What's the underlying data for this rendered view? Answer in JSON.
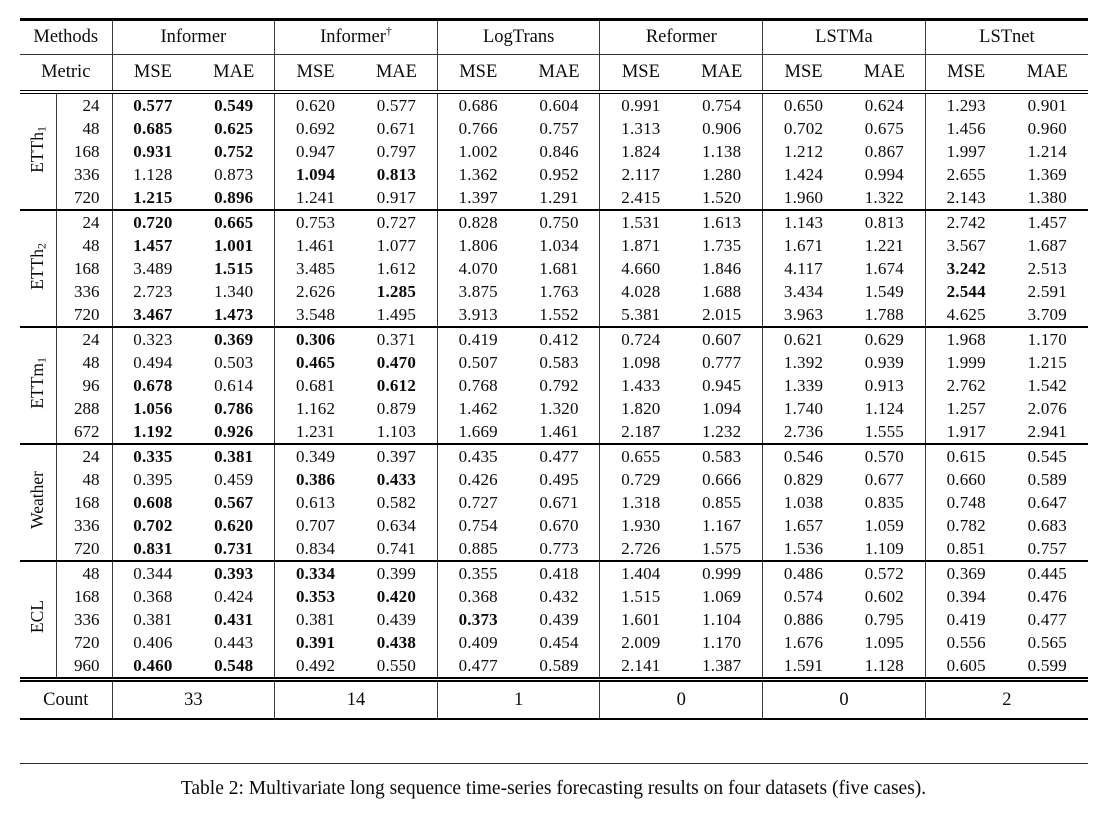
{
  "caption": "Table 2: Multivariate long sequence time-series forecasting results on four datasets (five cases).",
  "table": {
    "methods_label": "Methods",
    "metric_label": "Metric",
    "count_label": "Count",
    "methods": [
      {
        "name": "Informer",
        "sup": ""
      },
      {
        "name": "Informer",
        "sup": "†"
      },
      {
        "name": "LogTrans",
        "sup": ""
      },
      {
        "name": "Reformer",
        "sup": ""
      },
      {
        "name": "LSTMa",
        "sup": ""
      },
      {
        "name": "LSTnet",
        "sup": ""
      }
    ],
    "metrics": [
      "MSE",
      "MAE"
    ],
    "counts": [
      "33",
      "14",
      "1",
      "0",
      "0",
      "2"
    ],
    "groups": [
      {
        "label": "ETTh",
        "sub": "1",
        "rows": [
          {
            "h": "24",
            "v": [
              "0.577",
              "0.549",
              "0.620",
              "0.577",
              "0.686",
              "0.604",
              "0.991",
              "0.754",
              "0.650",
              "0.624",
              "1.293",
              "0.901"
            ],
            "b": [
              1,
              1,
              0,
              0,
              0,
              0,
              0,
              0,
              0,
              0,
              0,
              0
            ]
          },
          {
            "h": "48",
            "v": [
              "0.685",
              "0.625",
              "0.692",
              "0.671",
              "0.766",
              "0.757",
              "1.313",
              "0.906",
              "0.702",
              "0.675",
              "1.456",
              "0.960"
            ],
            "b": [
              1,
              1,
              0,
              0,
              0,
              0,
              0,
              0,
              0,
              0,
              0,
              0
            ]
          },
          {
            "h": "168",
            "v": [
              "0.931",
              "0.752",
              "0.947",
              "0.797",
              "1.002",
              "0.846",
              "1.824",
              "1.138",
              "1.212",
              "0.867",
              "1.997",
              "1.214"
            ],
            "b": [
              1,
              1,
              0,
              0,
              0,
              0,
              0,
              0,
              0,
              0,
              0,
              0
            ]
          },
          {
            "h": "336",
            "v": [
              "1.128",
              "0.873",
              "1.094",
              "0.813",
              "1.362",
              "0.952",
              "2.117",
              "1.280",
              "1.424",
              "0.994",
              "2.655",
              "1.369"
            ],
            "b": [
              0,
              0,
              1,
              1,
              0,
              0,
              0,
              0,
              0,
              0,
              0,
              0
            ]
          },
          {
            "h": "720",
            "v": [
              "1.215",
              "0.896",
              "1.241",
              "0.917",
              "1.397",
              "1.291",
              "2.415",
              "1.520",
              "1.960",
              "1.322",
              "2.143",
              "1.380"
            ],
            "b": [
              1,
              1,
              0,
              0,
              0,
              0,
              0,
              0,
              0,
              0,
              0,
              0
            ]
          }
        ]
      },
      {
        "label": "ETTh",
        "sub": "2",
        "rows": [
          {
            "h": "24",
            "v": [
              "0.720",
              "0.665",
              "0.753",
              "0.727",
              "0.828",
              "0.750",
              "1.531",
              "1.613",
              "1.143",
              "0.813",
              "2.742",
              "1.457"
            ],
            "b": [
              1,
              1,
              0,
              0,
              0,
              0,
              0,
              0,
              0,
              0,
              0,
              0
            ]
          },
          {
            "h": "48",
            "v": [
              "1.457",
              "1.001",
              "1.461",
              "1.077",
              "1.806",
              "1.034",
              "1.871",
              "1.735",
              "1.671",
              "1.221",
              "3.567",
              "1.687"
            ],
            "b": [
              1,
              1,
              0,
              0,
              0,
              0,
              0,
              0,
              0,
              0,
              0,
              0
            ]
          },
          {
            "h": "168",
            "v": [
              "3.489",
              "1.515",
              "3.485",
              "1.612",
              "4.070",
              "1.681",
              "4.660",
              "1.846",
              "4.117",
              "1.674",
              "3.242",
              "2.513"
            ],
            "b": [
              0,
              1,
              0,
              0,
              0,
              0,
              0,
              0,
              0,
              0,
              1,
              0
            ]
          },
          {
            "h": "336",
            "v": [
              "2.723",
              "1.340",
              "2.626",
              "1.285",
              "3.875",
              "1.763",
              "4.028",
              "1.688",
              "3.434",
              "1.549",
              "2.544",
              "2.591"
            ],
            "b": [
              0,
              0,
              0,
              1,
              0,
              0,
              0,
              0,
              0,
              0,
              1,
              0
            ]
          },
          {
            "h": "720",
            "v": [
              "3.467",
              "1.473",
              "3.548",
              "1.495",
              "3.913",
              "1.552",
              "5.381",
              "2.015",
              "3.963",
              "1.788",
              "4.625",
              "3.709"
            ],
            "b": [
              1,
              1,
              0,
              0,
              0,
              0,
              0,
              0,
              0,
              0,
              0,
              0
            ]
          }
        ]
      },
      {
        "label": "ETTm",
        "sub": "1",
        "rows": [
          {
            "h": "24",
            "v": [
              "0.323",
              "0.369",
              "0.306",
              "0.371",
              "0.419",
              "0.412",
              "0.724",
              "0.607",
              "0.621",
              "0.629",
              "1.968",
              "1.170"
            ],
            "b": [
              0,
              1,
              1,
              0,
              0,
              0,
              0,
              0,
              0,
              0,
              0,
              0
            ]
          },
          {
            "h": "48",
            "v": [
              "0.494",
              "0.503",
              "0.465",
              "0.470",
              "0.507",
              "0.583",
              "1.098",
              "0.777",
              "1.392",
              "0.939",
              "1.999",
              "1.215"
            ],
            "b": [
              0,
              0,
              1,
              1,
              0,
              0,
              0,
              0,
              0,
              0,
              0,
              0
            ]
          },
          {
            "h": "96",
            "v": [
              "0.678",
              "0.614",
              "0.681",
              "0.612",
              "0.768",
              "0.792",
              "1.433",
              "0.945",
              "1.339",
              "0.913",
              "2.762",
              "1.542"
            ],
            "b": [
              1,
              0,
              0,
              1,
              0,
              0,
              0,
              0,
              0,
              0,
              0,
              0
            ]
          },
          {
            "h": "288",
            "v": [
              "1.056",
              "0.786",
              "1.162",
              "0.879",
              "1.462",
              "1.320",
              "1.820",
              "1.094",
              "1.740",
              "1.124",
              "1.257",
              "2.076"
            ],
            "b": [
              1,
              1,
              0,
              0,
              0,
              0,
              0,
              0,
              0,
              0,
              0,
              0
            ]
          },
          {
            "h": "672",
            "v": [
              "1.192",
              "0.926",
              "1.231",
              "1.103",
              "1.669",
              "1.461",
              "2.187",
              "1.232",
              "2.736",
              "1.555",
              "1.917",
              "2.941"
            ],
            "b": [
              1,
              1,
              0,
              0,
              0,
              0,
              0,
              0,
              0,
              0,
              0,
              0
            ]
          }
        ]
      },
      {
        "label": "Weather",
        "sub": "",
        "rows": [
          {
            "h": "24",
            "v": [
              "0.335",
              "0.381",
              "0.349",
              "0.397",
              "0.435",
              "0.477",
              "0.655",
              "0.583",
              "0.546",
              "0.570",
              "0.615",
              "0.545"
            ],
            "b": [
              1,
              1,
              0,
              0,
              0,
              0,
              0,
              0,
              0,
              0,
              0,
              0
            ]
          },
          {
            "h": "48",
            "v": [
              "0.395",
              "0.459",
              "0.386",
              "0.433",
              "0.426",
              "0.495",
              "0.729",
              "0.666",
              "0.829",
              "0.677",
              "0.660",
              "0.589"
            ],
            "b": [
              0,
              0,
              1,
              1,
              0,
              0,
              0,
              0,
              0,
              0,
              0,
              0
            ]
          },
          {
            "h": "168",
            "v": [
              "0.608",
              "0.567",
              "0.613",
              "0.582",
              "0.727",
              "0.671",
              "1.318",
              "0.855",
              "1.038",
              "0.835",
              "0.748",
              "0.647"
            ],
            "b": [
              1,
              1,
              0,
              0,
              0,
              0,
              0,
              0,
              0,
              0,
              0,
              0
            ]
          },
          {
            "h": "336",
            "v": [
              "0.702",
              "0.620",
              "0.707",
              "0.634",
              "0.754",
              "0.670",
              "1.930",
              "1.167",
              "1.657",
              "1.059",
              "0.782",
              "0.683"
            ],
            "b": [
              1,
              1,
              0,
              0,
              0,
              0,
              0,
              0,
              0,
              0,
              0,
              0
            ]
          },
          {
            "h": "720",
            "v": [
              "0.831",
              "0.731",
              "0.834",
              "0.741",
              "0.885",
              "0.773",
              "2.726",
              "1.575",
              "1.536",
              "1.109",
              "0.851",
              "0.757"
            ],
            "b": [
              1,
              1,
              0,
              0,
              0,
              0,
              0,
              0,
              0,
              0,
              0,
              0
            ]
          }
        ]
      },
      {
        "label": "ECL",
        "sub": "",
        "rows": [
          {
            "h": "48",
            "v": [
              "0.344",
              "0.393",
              "0.334",
              "0.399",
              "0.355",
              "0.418",
              "1.404",
              "0.999",
              "0.486",
              "0.572",
              "0.369",
              "0.445"
            ],
            "b": [
              0,
              1,
              1,
              0,
              0,
              0,
              0,
              0,
              0,
              0,
              0,
              0
            ]
          },
          {
            "h": "168",
            "v": [
              "0.368",
              "0.424",
              "0.353",
              "0.420",
              "0.368",
              "0.432",
              "1.515",
              "1.069",
              "0.574",
              "0.602",
              "0.394",
              "0.476"
            ],
            "b": [
              0,
              0,
              1,
              1,
              0,
              0,
              0,
              0,
              0,
              0,
              0,
              0
            ]
          },
          {
            "h": "336",
            "v": [
              "0.381",
              "0.431",
              "0.381",
              "0.439",
              "0.373",
              "0.439",
              "1.601",
              "1.104",
              "0.886",
              "0.795",
              "0.419",
              "0.477"
            ],
            "b": [
              0,
              1,
              0,
              0,
              1,
              0,
              0,
              0,
              0,
              0,
              0,
              0
            ]
          },
          {
            "h": "720",
            "v": [
              "0.406",
              "0.443",
              "0.391",
              "0.438",
              "0.409",
              "0.454",
              "2.009",
              "1.170",
              "1.676",
              "1.095",
              "0.556",
              "0.565"
            ],
            "b": [
              0,
              0,
              1,
              1,
              0,
              0,
              0,
              0,
              0,
              0,
              0,
              0
            ]
          },
          {
            "h": "960",
            "v": [
              "0.460",
              "0.548",
              "0.492",
              "0.550",
              "0.477",
              "0.589",
              "2.141",
              "1.387",
              "1.591",
              "1.128",
              "0.605",
              "0.599"
            ],
            "b": [
              1,
              1,
              0,
              0,
              0,
              0,
              0,
              0,
              0,
              0,
              0,
              0
            ]
          }
        ]
      }
    ]
  }
}
